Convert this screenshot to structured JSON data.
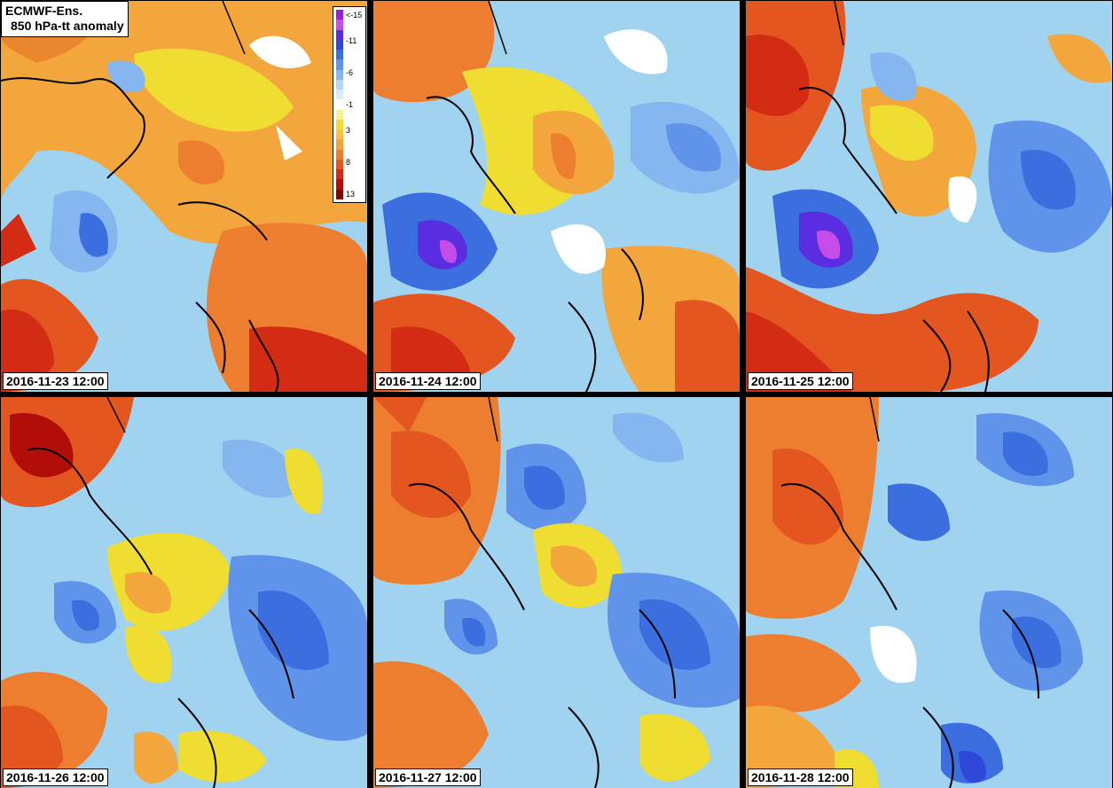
{
  "title": {
    "line1": "ECMWF-Ens.",
    "line2": "850 hPa-tt anomaly"
  },
  "legend": {
    "ticks": [
      {
        "label": "<-15",
        "value": -15
      },
      {
        "label": "-11",
        "value": -11
      },
      {
        "label": "-6",
        "value": -6
      },
      {
        "label": "-1",
        "value": -1
      },
      {
        "label": "3",
        "value": 3
      },
      {
        "label": "8",
        "value": 8
      },
      {
        "label": "13",
        "value": 13
      }
    ],
    "colors": [
      "#9b1fd6",
      "#c54ce8",
      "#5a2de0",
      "#2f48d8",
      "#3b6fe0",
      "#5f94ea",
      "#86b6f0",
      "#b4d8f5",
      "#d6ecfa",
      "#ffffff",
      "#f5f29a",
      "#f0dd32",
      "#f5c243",
      "#f4a23a",
      "#ee7e2f",
      "#e3561f",
      "#d42b14",
      "#b10e0a",
      "#7c0606"
    ]
  },
  "colors": {
    "cold_deep": "#7f2fd0",
    "cold": "#2f4fd8",
    "cool": "#9fd3ef",
    "warm": "#f0a030",
    "hot": "#d42b14"
  },
  "panels": [
    {
      "date": "2016-11-23 12:00"
    },
    {
      "date": "2016-11-24 12:00"
    },
    {
      "date": "2016-11-25 12:00"
    },
    {
      "date": "2016-11-26 12:00"
    },
    {
      "date": "2016-11-27 12:00"
    },
    {
      "date": "2016-11-28 12:00"
    }
  ]
}
